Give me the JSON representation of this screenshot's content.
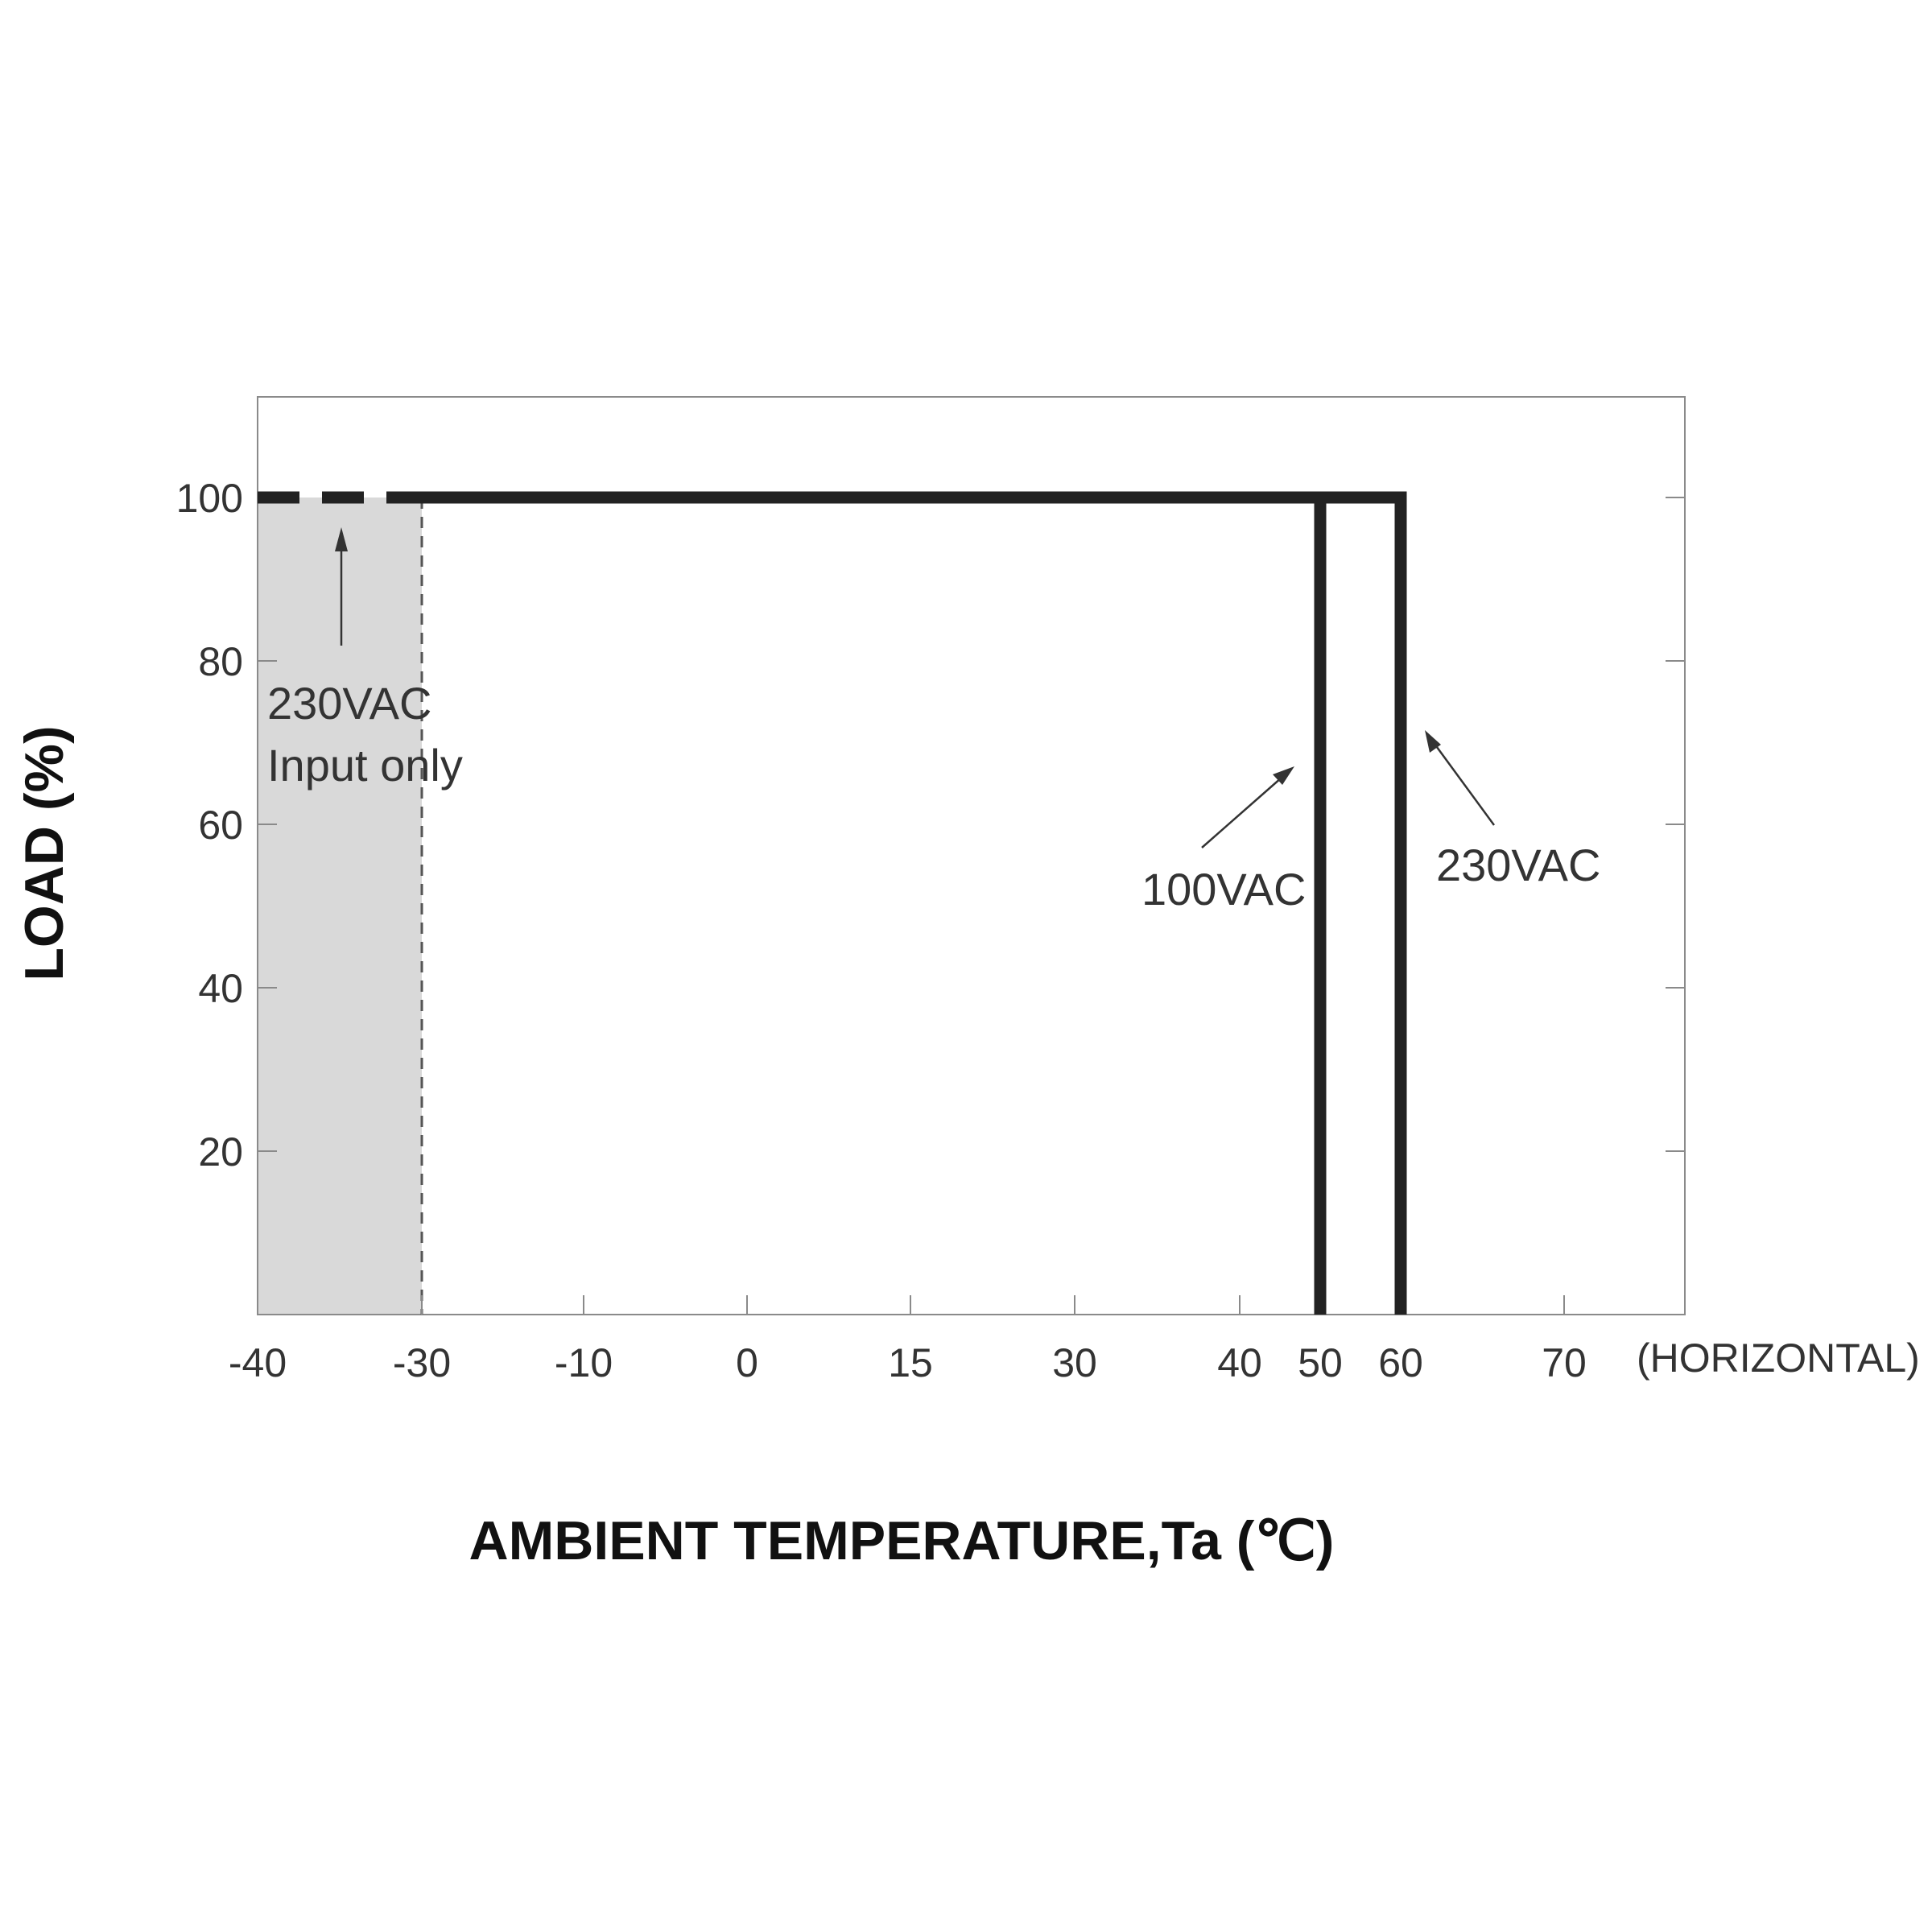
{
  "chart_data": {
    "type": "line",
    "xlabel": "AMBIENT TEMPERATURE,Ta (℃)",
    "ylabel": "LOAD (%)",
    "x_ticks": [
      "-40",
      "-30",
      "-10",
      "0",
      "15",
      "30",
      "40",
      "50",
      "60",
      "70"
    ],
    "x_note": "(HORIZONTAL)",
    "y_ticks": [
      "100",
      "80",
      "60",
      "40",
      "20"
    ],
    "xlim": [
      -40,
      75
    ],
    "ylim": [
      0,
      112
    ],
    "shaded_region": {
      "x": [
        -40,
        -30
      ],
      "label_line1": "230VAC",
      "label_line2": "Input only"
    },
    "series": [
      {
        "name": "230VAC",
        "points": [
          [
            -40,
            100
          ],
          [
            -30,
            100
          ],
          [
            60,
            100
          ],
          [
            60,
            0
          ]
        ],
        "dashed_segment_x": [
          -40,
          -30
        ]
      },
      {
        "name": "100VAC",
        "points": [
          [
            -30,
            100
          ],
          [
            50,
            100
          ],
          [
            50,
            0
          ]
        ]
      }
    ],
    "annotations": [
      {
        "text": "230VAC",
        "line1": "230VAC",
        "line2": "Input only"
      },
      {
        "text": "100VAC"
      },
      {
        "text": "230VAC"
      }
    ],
    "colors": {
      "curve": "#222222",
      "shade": "#d9d9d9",
      "frame": "#8a8a8a"
    },
    "grid": false
  }
}
